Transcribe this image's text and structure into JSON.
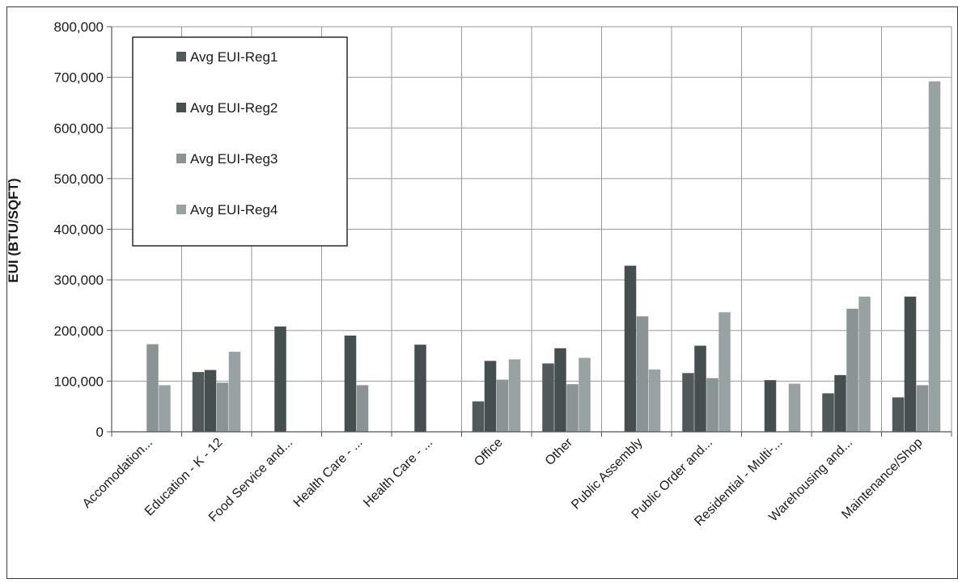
{
  "chart_data": {
    "type": "bar",
    "ylabel": "EUI (BTU/SQFT)",
    "xlabel": "",
    "ylim": [
      0,
      800000
    ],
    "yticks": [
      0,
      100000,
      200000,
      300000,
      400000,
      500000,
      600000,
      700000,
      800000
    ],
    "ytick_labels": [
      "0",
      "100,000",
      "200,000",
      "300,000",
      "400,000",
      "500,000",
      "600,000",
      "700,000",
      "800,000"
    ],
    "grid": "vertical and horizontal gridlines on",
    "legend_position": "top-left",
    "categories": [
      "Accomodation...",
      "Education - K - 12",
      "Food Service and...",
      "Health Care - ...",
      "Health Care - ...",
      "Office",
      "Other",
      "Public Assembly",
      "Public Order and...",
      "Residential - Multi-...",
      "Warehousing and...",
      "Maintenance/Shop"
    ],
    "series": [
      {
        "name": "Avg EUI-Reg1",
        "color": "#505a5a",
        "values": [
          0,
          118000,
          0,
          0,
          0,
          60000,
          135000,
          0,
          116000,
          0,
          76000,
          68000
        ]
      },
      {
        "name": "Avg EUI-Reg2",
        "color": "#454f4f",
        "values": [
          0,
          122000,
          208000,
          190000,
          172000,
          140000,
          165000,
          328000,
          170000,
          102000,
          112000,
          267000
        ]
      },
      {
        "name": "Avg EUI-Reg3",
        "color": "#8a9494",
        "values": [
          173000,
          97000,
          0,
          92000,
          0,
          103000,
          94000,
          228000,
          106000,
          0,
          243000,
          92000
        ]
      },
      {
        "name": "Avg EUI-Reg4",
        "color": "#98a2a2",
        "values": [
          92000,
          158000,
          0,
          0,
          0,
          143000,
          146000,
          123000,
          236000,
          95000,
          267000,
          692000
        ]
      }
    ],
    "series_extra_note": ""
  }
}
